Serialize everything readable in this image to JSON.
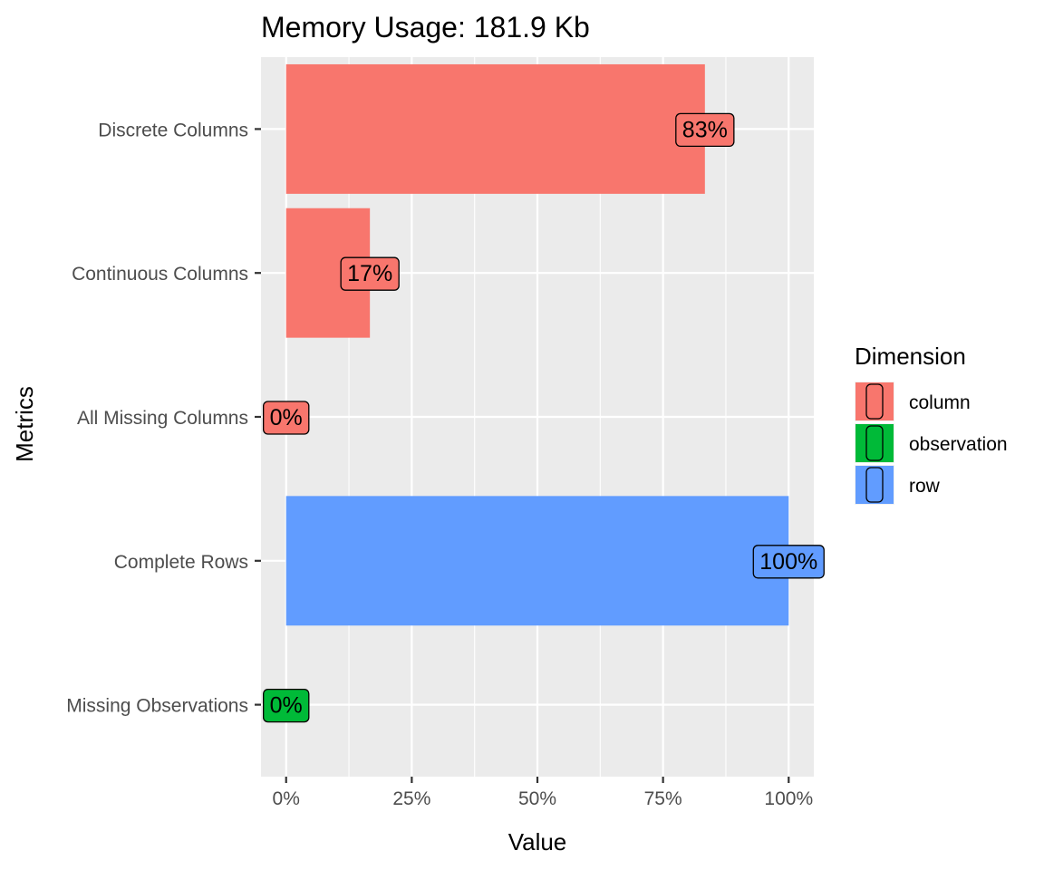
{
  "chart_data": {
    "type": "bar",
    "orientation": "horizontal",
    "title": "Memory Usage: 181.9 Kb",
    "xlabel": "Value",
    "ylabel": "Metrics",
    "xlim": [
      -0.05,
      1.05
    ],
    "grid": true,
    "categories": [
      "Discrete Columns",
      "Continuous Columns",
      "All Missing Columns",
      "Complete Rows",
      "Missing Observations"
    ],
    "values": [
      0.8333,
      0.1667,
      0,
      1,
      0
    ],
    "value_labels": [
      "83%",
      "17%",
      "0%",
      "100%",
      "0%"
    ],
    "groups": [
      "column",
      "column",
      "column",
      "row",
      "observation"
    ],
    "x_ticks": [
      0,
      0.25,
      0.5,
      0.75,
      1
    ],
    "x_tick_labels": [
      "0%",
      "25%",
      "50%",
      "75%",
      "100%"
    ],
    "legend": {
      "title": "Dimension",
      "position": "right",
      "entries": [
        {
          "label": "column",
          "color": "#F8766D"
        },
        {
          "label": "observation",
          "color": "#00BA38"
        },
        {
          "label": "row",
          "color": "#619CFF"
        }
      ]
    },
    "colors": {
      "column": "#F8766D",
      "observation": "#00BA38",
      "row": "#619CFF",
      "panel_background": "#EBEBEB",
      "grid": "#FFFFFF"
    }
  }
}
